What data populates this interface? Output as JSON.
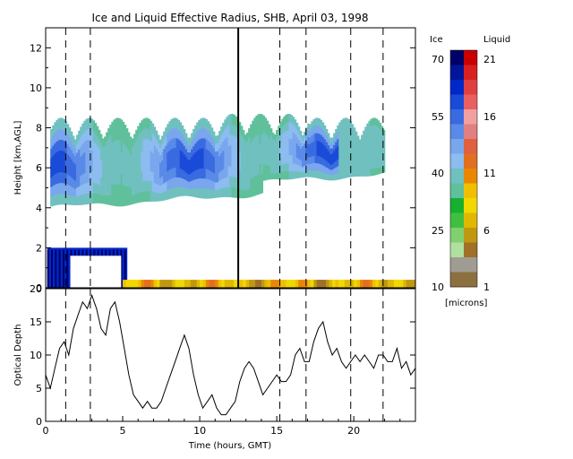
{
  "chart_data": [
    {
      "type": "heatmap",
      "title": "Ice and Liquid Effective Radius, SHB, April 03, 1998",
      "ylabel": "Height [km,AGL]",
      "xlim": [
        0,
        24
      ],
      "ylim": [
        0,
        13
      ],
      "y_ticks": [
        "0",
        "2",
        "4",
        "6",
        "8",
        "10",
        "12"
      ],
      "vertical_dashed_lines": [
        1.3,
        2.9,
        15.2,
        16.9,
        19.8,
        21.9
      ],
      "vertical_solid_line": 12.5,
      "cloud_layers": [
        {
          "phase": "ice",
          "t_start": 0.3,
          "t_end": 22.0,
          "base_km": 4.0,
          "top_km": 8.5
        },
        {
          "phase": "ice",
          "t_start": 0.1,
          "t_end": 5.3,
          "base_km": 0.0,
          "top_km": 2.0
        },
        {
          "phase": "liquid",
          "t_start": 5.0,
          "t_end": 24.0,
          "base_km": 0.0,
          "top_km": 0.4
        }
      ],
      "colorbar": {
        "ice_label": "Ice",
        "liquid_label": "Liquid",
        "unit": "[microns]",
        "ice_ticks": [
          "70",
          "55",
          "40",
          "25",
          "10"
        ],
        "liquid_ticks": [
          "21",
          "16",
          "11",
          "6",
          "1"
        ],
        "ice_colors": [
          "#000066",
          "#00159a",
          "#0028c8",
          "#1a4ad8",
          "#3a6ae0",
          "#5a8ae8",
          "#7aa6ee",
          "#8cbcf0",
          "#70c0c0",
          "#60c09c"
        ],
        "liquid_colors": [
          "#18b030",
          "#40c040",
          "#80d070",
          "#b0e0a0",
          "#a09c94",
          "#8c7040",
          "#a07028",
          "#c09810",
          "#e0b800",
          "#f0d800",
          "#f0c000",
          "#e88800",
          "#e07020",
          "#e06040",
          "#e08080",
          "#f0a0a0",
          "#e86060",
          "#e04040",
          "#d82020",
          "#c80000"
        ]
      }
    },
    {
      "type": "line",
      "xlabel": "Time (hours, GMT)",
      "ylabel": "Optical Depth",
      "xlim": [
        0,
        24
      ],
      "ylim": [
        0,
        20
      ],
      "x_ticks": [
        "0",
        "5",
        "10",
        "15",
        "20"
      ],
      "y_ticks": [
        "0",
        "5",
        "10",
        "15",
        "20"
      ],
      "vertical_dashed_lines": [
        1.3,
        2.9,
        15.2,
        16.9,
        19.8,
        21.9
      ],
      "series": [
        {
          "x": [
            0.0,
            0.3,
            0.6,
            0.9,
            1.2,
            1.5,
            1.8,
            2.1,
            2.4,
            2.7,
            3.0,
            3.3,
            3.6,
            3.9,
            4.2,
            4.5,
            4.8,
            5.1,
            5.4,
            5.7,
            6.0,
            6.3,
            6.6,
            6.9,
            7.2,
            7.5,
            7.8,
            8.1,
            8.4,
            8.7,
            9.0,
            9.3,
            9.6,
            9.9,
            10.2,
            10.5,
            10.8,
            11.1,
            11.4,
            11.7,
            12.0,
            12.3,
            12.6,
            12.9,
            13.2,
            13.5,
            13.8,
            14.1,
            14.4,
            14.7,
            15.0,
            15.3,
            15.6,
            15.9,
            16.2,
            16.5,
            16.8,
            17.1,
            17.4,
            17.7,
            18.0,
            18.3,
            18.6,
            18.9,
            19.2,
            19.5,
            19.8,
            20.1,
            20.4,
            20.7,
            21.0,
            21.3,
            21.6,
            21.9,
            22.2,
            22.5,
            22.8,
            23.1,
            23.4,
            23.7,
            24.0
          ],
          "y": [
            7,
            5,
            8,
            11,
            12,
            10,
            14,
            16,
            18,
            17,
            19,
            17,
            14,
            13,
            17,
            18,
            15,
            11,
            7,
            4,
            3,
            2,
            3,
            2,
            2,
            3,
            5,
            7,
            9,
            11,
            13,
            11,
            7,
            4,
            2,
            3,
            4,
            2,
            1,
            1,
            2,
            3,
            6,
            8,
            9,
            8,
            6,
            4,
            5,
            6,
            7,
            6,
            6,
            7,
            10,
            11,
            9,
            9,
            12,
            14,
            15,
            12,
            10,
            11,
            9,
            8,
            9,
            10,
            9,
            10,
            9,
            8,
            10,
            10,
            9,
            9,
            11,
            8,
            9,
            7,
            8
          ]
        }
      ]
    }
  ]
}
